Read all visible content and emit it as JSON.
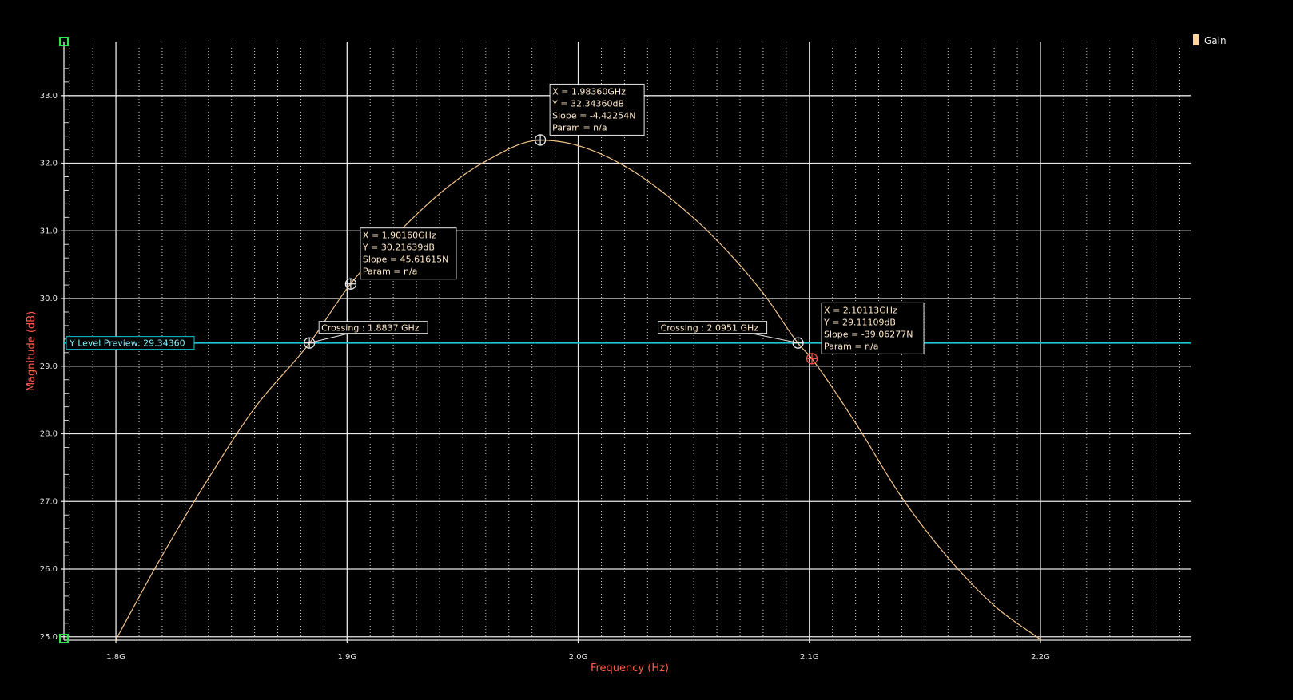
{
  "colors": {
    "background": "#000000",
    "grid_major": "#e8e8e8",
    "grid_minor": "#cfcfcf",
    "trace": "#f2c38a",
    "axis_title": "#ff5a4a",
    "y_level": "#18c6d6",
    "marker_active": "#ff4d4d",
    "legend_swatch": "#ffd59a"
  },
  "chart_data": {
    "type": "line",
    "xlabel": "Frequency (Hz)",
    "ylabel": "Magnitude (dB)",
    "xlim": [
      1.7775,
      2.265
    ],
    "ylim": [
      24.95,
      33.8
    ],
    "x_unit": "GHz",
    "x_ticks": [
      {
        "value": 1.8,
        "label": "1.8G"
      },
      {
        "value": 1.9,
        "label": "1.9G"
      },
      {
        "value": 2.0,
        "label": "2.0G"
      },
      {
        "value": 2.1,
        "label": "2.1G"
      },
      {
        "value": 2.2,
        "label": "2.2G"
      }
    ],
    "y_ticks": [
      {
        "value": 25.0,
        "label": "25.0"
      },
      {
        "value": 26.0,
        "label": "26.0"
      },
      {
        "value": 27.0,
        "label": "27.0"
      },
      {
        "value": 28.0,
        "label": "28.0"
      },
      {
        "value": 29.0,
        "label": "29.0"
      },
      {
        "value": 30.0,
        "label": "30.0"
      },
      {
        "value": 31.0,
        "label": "31.0"
      },
      {
        "value": 32.0,
        "label": "32.0"
      },
      {
        "value": 33.0,
        "label": "33.0"
      }
    ],
    "grid": true,
    "legend_position": "top-right",
    "series": [
      {
        "name": "Gain",
        "x": [
          1.8,
          1.82,
          1.84,
          1.86,
          1.8837,
          1.9016,
          1.92,
          1.94,
          1.96,
          1.9836,
          2.0,
          2.02,
          2.04,
          2.06,
          2.08,
          2.0951,
          2.1011,
          2.12,
          2.14,
          2.16,
          2.18,
          2.2
        ],
        "y": [
          24.96,
          26.2,
          27.34,
          28.38,
          29.34,
          30.22,
          30.9,
          31.55,
          32.03,
          32.34,
          32.26,
          31.96,
          31.48,
          30.86,
          30.08,
          29.34,
          29.11,
          28.16,
          27.06,
          26.17,
          25.46,
          24.96
        ]
      }
    ],
    "y_level": {
      "label": "Y Level Preview: 29.34360",
      "value": 29.3436
    },
    "markers": [
      {
        "x": 1.9836,
        "y": 32.3436,
        "lines": [
          "X = 1.98360GHz",
          "Y = 32.34360dB",
          "Slope = -4.42254N",
          "Param = n/a"
        ],
        "active": false
      },
      {
        "x": 1.9016,
        "y": 30.21639,
        "lines": [
          "X = 1.90160GHz",
          "Y = 30.21639dB",
          "Slope = 45.61615N",
          "Param = n/a"
        ],
        "active": false
      },
      {
        "x": 2.10113,
        "y": 29.11109,
        "lines": [
          "X = 2.10113GHz",
          "Y = 29.11109dB",
          "Slope = -39.06277N",
          "Param = n/a"
        ],
        "active": true
      }
    ],
    "crossings": [
      {
        "x": 1.8837,
        "y": 29.3436,
        "label": "Crossing : 1.8837 GHz"
      },
      {
        "x": 2.0951,
        "y": 29.3436,
        "label": "Crossing : 2.0951 GHz"
      }
    ]
  }
}
